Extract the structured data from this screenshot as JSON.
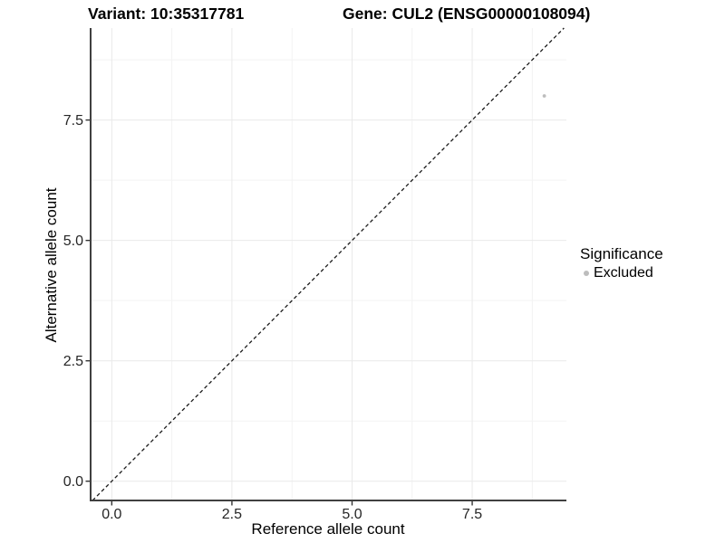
{
  "chart_data": {
    "type": "scatter",
    "title_left": "Variant: 10:35317781",
    "title_right": "Gene: CUL2 (ENSG00000108094)",
    "xlabel": "Reference allele count",
    "ylabel": "Alternative allele count",
    "x_range": [
      -0.44,
      9.46
    ],
    "y_range": [
      -0.4,
      9.41
    ],
    "x_ticks": [
      0,
      2.5,
      5.0,
      7.5
    ],
    "y_ticks": [
      0,
      2.5,
      5.0,
      7.5
    ],
    "x_minor_gridlines": [
      1.25,
      3.75,
      6.25,
      8.75
    ],
    "y_minor_gridlines": [
      1.25,
      3.75,
      6.25,
      8.75
    ],
    "grid": true,
    "reference_line": {
      "style": "dashed",
      "slope": 1,
      "intercept": 0,
      "color": "#1a1a1a"
    },
    "series": [
      {
        "name": "Excluded",
        "color": "#bdbdbd",
        "points": [
          {
            "x": 9,
            "y": 8
          }
        ]
      }
    ],
    "legend": {
      "title": "Significance",
      "position": "right",
      "items": [
        {
          "label": "Excluded",
          "color": "#bdbdbd"
        }
      ]
    },
    "colors": {
      "background": "#ffffff",
      "axis_line": "#404040",
      "tick_mark": "#333333",
      "tick_label": "#262626",
      "major_gridline": "#e9e9e9",
      "minor_gridline": "#f3f3f3",
      "point": "#bdbdbd"
    }
  }
}
